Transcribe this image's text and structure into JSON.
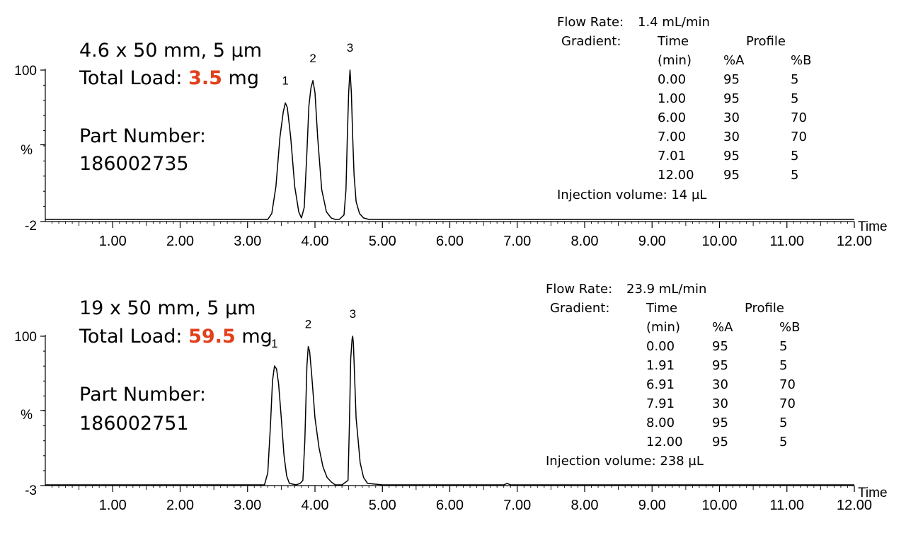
{
  "chart_data": [
    {
      "type": "line",
      "column": "4.6 x 50 mm, 5 µm",
      "load_label": "Total Load:",
      "load_value": "3.5",
      "load_unit": "mg",
      "part_label": "Part Number:",
      "part_number": "186002735",
      "xlabel": "Time",
      "ylabel": "%",
      "xlim": [
        0,
        12
      ],
      "ylim": [
        -2,
        100
      ],
      "y_tick_labels": [
        "100",
        "%",
        "-2"
      ],
      "x_ticks": [
        "1.00",
        "2.00",
        "3.00",
        "4.00",
        "5.00",
        "6.00",
        "7.00",
        "8.00",
        "9.00",
        "10.00",
        "11.00",
        "12.00"
      ],
      "peaks": [
        {
          "label": "1",
          "time": 3.56,
          "height": 78
        },
        {
          "label": "2",
          "time": 3.97,
          "height": 93
        },
        {
          "label": "3",
          "time": 4.52,
          "height": 100
        }
      ],
      "series": [
        {
          "x": [
            0,
            3.3,
            3.36,
            3.42,
            3.48,
            3.53,
            3.56,
            3.59,
            3.64,
            3.7,
            3.76,
            3.8,
            3.84,
            3.88,
            3.91,
            3.94,
            3.97,
            4.0,
            4.04,
            4.1,
            4.17,
            4.24,
            4.3,
            4.36,
            4.43,
            4.46,
            4.48,
            4.5,
            4.52,
            4.54,
            4.56,
            4.58,
            4.61,
            4.66,
            4.72,
            4.8,
            12
          ],
          "y": [
            0,
            0,
            4,
            22,
            55,
            72,
            78,
            75,
            55,
            22,
            5,
            1,
            8,
            45,
            76,
            88,
            93,
            85,
            55,
            20,
            5,
            1,
            0,
            0,
            3,
            20,
            55,
            85,
            100,
            85,
            55,
            30,
            12,
            4,
            1,
            0,
            0
          ]
        }
      ],
      "gradient": {
        "flow_label": "Flow Rate:",
        "flow_value": "1.4 mL/min",
        "gradient_label": "Gradient:",
        "time_header": "Time",
        "time_unit": "(min)",
        "profile_header": "Profile",
        "a_header": "%A",
        "b_header": "%B",
        "rows": [
          [
            "0.00",
            "95",
            "5"
          ],
          [
            "1.00",
            "95",
            "5"
          ],
          [
            "6.00",
            "30",
            "70"
          ],
          [
            "7.00",
            "30",
            "70"
          ],
          [
            "7.01",
            "95",
            "5"
          ],
          [
            "12.00",
            "95",
            "5"
          ]
        ],
        "injection": "Injection volume: 14 µL"
      }
    },
    {
      "type": "line",
      "column": "19 x 50 mm, 5 µm",
      "load_label": "Total Load:",
      "load_value": "59.5",
      "load_unit": "mg",
      "part_label": "Part Number:",
      "part_number": "186002751",
      "xlabel": "Time",
      "ylabel": "%",
      "xlim": [
        0,
        12
      ],
      "ylim": [
        -3,
        100
      ],
      "y_tick_labels": [
        "100",
        "%",
        "-3"
      ],
      "x_ticks": [
        "1.00",
        "2.00",
        "3.00",
        "4.00",
        "5.00",
        "6.00",
        "7.00",
        "8.00",
        "9.00",
        "10.00",
        "11.00",
        "12.00"
      ],
      "peaks": [
        {
          "label": "1",
          "time": 3.4,
          "height": 80
        },
        {
          "label": "2",
          "time": 3.9,
          "height": 93
        },
        {
          "label": "3",
          "time": 4.56,
          "height": 100
        }
      ],
      "series": [
        {
          "x": [
            0,
            3.25,
            3.3,
            3.34,
            3.37,
            3.4,
            3.43,
            3.46,
            3.5,
            3.54,
            3.58,
            3.62,
            3.72,
            3.78,
            3.82,
            3.85,
            3.88,
            3.9,
            3.92,
            3.95,
            4.0,
            4.06,
            4.12,
            4.18,
            4.24,
            4.3,
            4.4,
            4.49,
            4.51,
            4.53,
            4.55,
            4.56,
            4.57,
            4.59,
            4.61,
            4.64,
            4.67,
            4.72,
            4.78,
            5.0,
            6.8,
            6.85,
            6.9,
            12
          ],
          "y": [
            0,
            0,
            8,
            40,
            70,
            80,
            78,
            68,
            45,
            20,
            6,
            1,
            0,
            1,
            3,
            30,
            80,
            93,
            90,
            75,
            45,
            25,
            12,
            5,
            2,
            0,
            0,
            3,
            40,
            85,
            98,
            100,
            95,
            70,
            45,
            30,
            15,
            5,
            1,
            0,
            0,
            1,
            0,
            0
          ]
        }
      ],
      "gradient": {
        "flow_label": "Flow Rate:",
        "flow_value": "23.9 mL/min",
        "gradient_label": "Gradient:",
        "time_header": "Time",
        "time_unit": "(min)",
        "profile_header": "Profile",
        "a_header": "%A",
        "b_header": "%B",
        "rows": [
          [
            "0.00",
            "95",
            "5"
          ],
          [
            "1.91",
            "95",
            "5"
          ],
          [
            "6.91",
            "30",
            "70"
          ],
          [
            "7.91",
            "30",
            "70"
          ],
          [
            "8.00",
            "95",
            "5"
          ],
          [
            "12.00",
            "95",
            "5"
          ]
        ],
        "injection": "Injection volume: 238 µL"
      }
    }
  ]
}
